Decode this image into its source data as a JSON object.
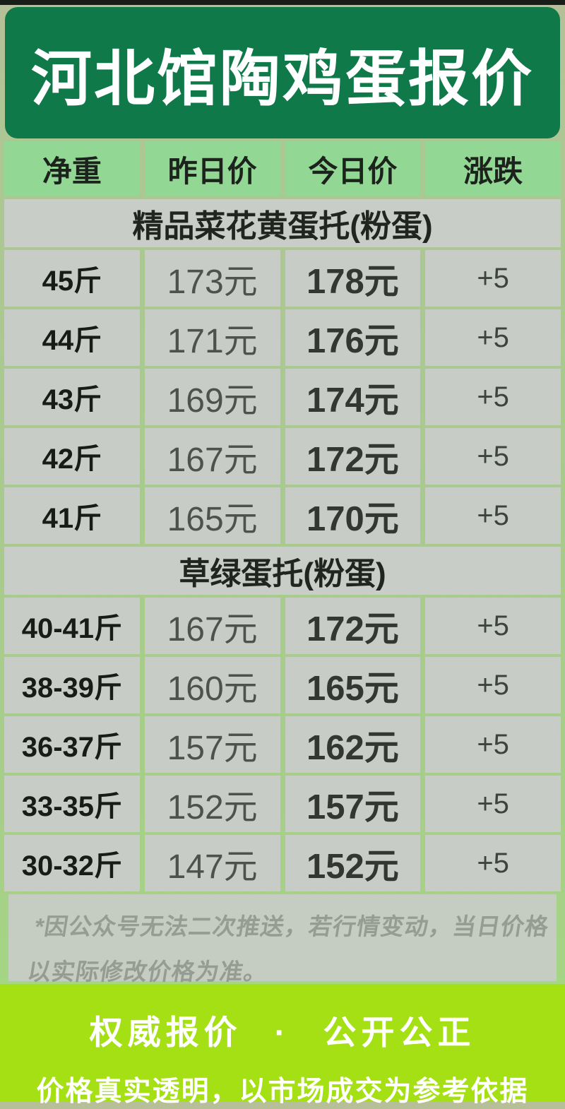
{
  "chart_data": {
    "type": "table",
    "title": "河北馆陶鸡蛋报价",
    "columns": {
      "weight": "净重",
      "yesterday": "昨日价",
      "today": "今日价",
      "change": "涨跌"
    },
    "sections": [
      {
        "title": "精品菜花黄蛋托(粉蛋)",
        "rows": [
          {
            "weight": "45斤",
            "yesterday": "173元",
            "today": "178元",
            "change": "+5"
          },
          {
            "weight": "44斤",
            "yesterday": "171元",
            "today": "176元",
            "change": "+5"
          },
          {
            "weight": "43斤",
            "yesterday": "169元",
            "today": "174元",
            "change": "+5"
          },
          {
            "weight": "42斤",
            "yesterday": "167元",
            "today": "172元",
            "change": "+5"
          },
          {
            "weight": "41斤",
            "yesterday": "165元",
            "today": "170元",
            "change": "+5"
          }
        ]
      },
      {
        "title": "草绿蛋托(粉蛋)",
        "rows": [
          {
            "weight": "40-41斤",
            "yesterday": "167元",
            "today": "172元",
            "change": "+5"
          },
          {
            "weight": "38-39斤",
            "yesterday": "160元",
            "today": "165元",
            "change": "+5"
          },
          {
            "weight": "36-37斤",
            "yesterday": "157元",
            "today": "162元",
            "change": "+5"
          },
          {
            "weight": "33-35斤",
            "yesterday": "152元",
            "today": "157元",
            "change": "+5"
          },
          {
            "weight": "30-32斤",
            "yesterday": "147元",
            "today": "152元",
            "change": "+5"
          }
        ]
      }
    ]
  },
  "footnote": {
    "text": "*因公众号无法二次推送，若行情变动，当日价格以实际修改价格为准。"
  },
  "footer": {
    "line1": "权威报价 · 公开公正",
    "line2": "价格真实透明，以市场成交为参考依据"
  },
  "colors": {
    "header_green": "#10794a",
    "cell_green": "#93d795",
    "cell_gray": "#c7cdc6",
    "footer_green": "#a4e013",
    "top_strip": "#181d18",
    "background_green": "#a9ca8e"
  }
}
